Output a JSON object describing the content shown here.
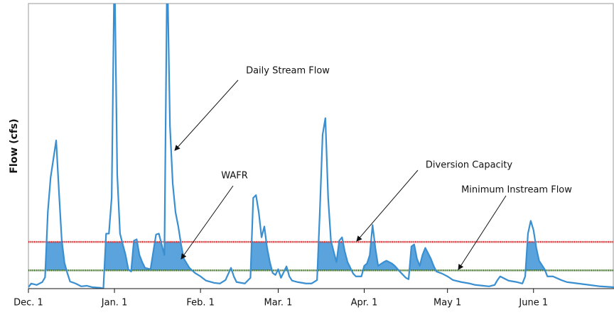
{
  "chart_data": {
    "type": "line",
    "y_label": "Flow (cfs)",
    "xlim": [
      0,
      211
    ],
    "ylim": [
      0,
      100
    ],
    "xticks": [
      {
        "value": 0,
        "label": "Dec. 1"
      },
      {
        "value": 31,
        "label": "Jan. 1"
      },
      {
        "value": 62,
        "label": "Feb. 1"
      },
      {
        "value": 90,
        "label": "Mar. 1"
      },
      {
        "value": 121,
        "label": "Apr. 1"
      },
      {
        "value": 151,
        "label": "May 1"
      },
      {
        "value": 182,
        "label": "June 1"
      }
    ],
    "series": [
      {
        "name": "Daily Stream Flow",
        "color": "#3a8fd0",
        "x": [
          0,
          1,
          3,
          5,
          6,
          7,
          8,
          10,
          11,
          12,
          13,
          14,
          15,
          17,
          19,
          21,
          23,
          26,
          27,
          28,
          29,
          30,
          31,
          32,
          33,
          34,
          35,
          36,
          37,
          38,
          39,
          40,
          41,
          42,
          44,
          45,
          46,
          47,
          48,
          49,
          50,
          51,
          52,
          53,
          54,
          55,
          56,
          58,
          60,
          62,
          64,
          67,
          69,
          71,
          73,
          74,
          75,
          78,
          80,
          81,
          82,
          83,
          84,
          85,
          86,
          87,
          88,
          89,
          90,
          91,
          93,
          94,
          95,
          97,
          100,
          102,
          104,
          105,
          106,
          107,
          108,
          109,
          110,
          111,
          112,
          113,
          114,
          115,
          116,
          117,
          118,
          120,
          121,
          122,
          123,
          124,
          125,
          126,
          128,
          129,
          131,
          132,
          134,
          136,
          137,
          138,
          139,
          140,
          141,
          142,
          143,
          145,
          146,
          147,
          149,
          151,
          153,
          156,
          159,
          161,
          164,
          166,
          168,
          169,
          170,
          171,
          173,
          176,
          178,
          179,
          180,
          181,
          182,
          183,
          184,
          186,
          187,
          189,
          192,
          194,
          198,
          202,
          206,
          211
        ],
        "values": [
          0.5,
          1.8,
          1.3,
          2.3,
          4,
          27,
          39,
          52,
          34,
          17,
          9,
          5.5,
          2.5,
          1.8,
          0.8,
          1,
          0.5,
          0.3,
          0,
          19.3,
          19.3,
          32,
          115,
          40,
          19.3,
          15.5,
          11.8,
          6.8,
          6,
          16.8,
          17.3,
          11.8,
          9.3,
          7.3,
          6.8,
          13,
          19,
          19.3,
          15.5,
          11.8,
          115,
          57,
          36.8,
          26.8,
          21.8,
          15.5,
          10.5,
          7.3,
          5.5,
          4.3,
          2.8,
          2,
          1.8,
          3,
          7.3,
          4.3,
          2.3,
          1.8,
          3.8,
          31.8,
          32.8,
          26.8,
          18,
          21.8,
          14.3,
          9.3,
          5.5,
          4.8,
          6.8,
          3.8,
          7.8,
          4.3,
          2.8,
          2.3,
          1.8,
          1.8,
          3,
          26.8,
          54,
          59.8,
          31.8,
          16.8,
          13,
          9.3,
          16.8,
          18,
          13,
          9.3,
          7.3,
          5.3,
          4.3,
          4.3,
          8,
          8.8,
          11.8,
          22.3,
          14.3,
          8,
          9.3,
          9.8,
          8.8,
          8,
          5.8,
          3.8,
          3.3,
          14.8,
          15.5,
          10.5,
          8,
          11.8,
          14.3,
          10.5,
          8,
          6,
          5.3,
          4.3,
          3,
          2.3,
          1.8,
          1.3,
          1,
          0.8,
          1.3,
          3,
          4.3,
          3.8,
          2.8,
          2.3,
          1.8,
          4.3,
          19.3,
          23.8,
          20.5,
          14.3,
          9.8,
          6.8,
          4.3,
          4.3,
          3,
          2.3,
          1.8,
          1.3,
          0.8,
          0.5
        ]
      }
    ],
    "reference_lines": [
      {
        "name": "Diversion Capacity",
        "value": 16.4,
        "color": "#d62728"
      },
      {
        "name": "Minimum Instream Flow",
        "value": 6.4,
        "color": "#3b6b1f"
      }
    ],
    "fill": {
      "name": "WAFR",
      "color": "#5ba3dc"
    }
  }
}
